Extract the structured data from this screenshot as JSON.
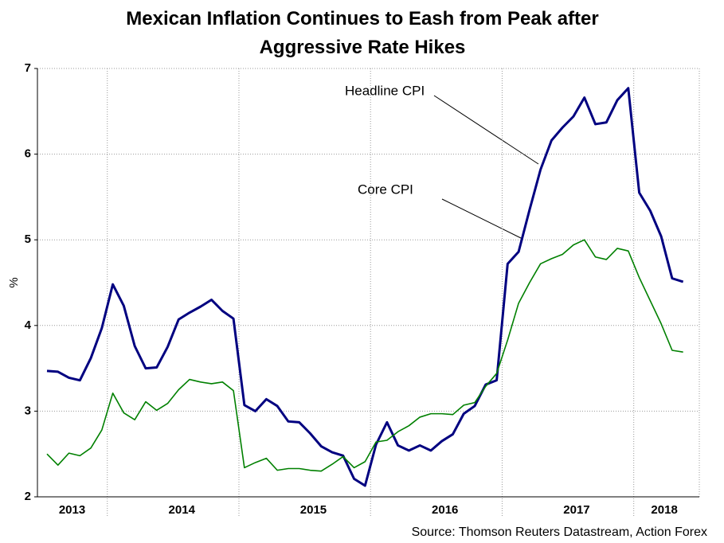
{
  "chart_data": {
    "type": "line",
    "title": "Mexican Inflation Continues to Eash from Peak after Aggressive Rate Hikes",
    "y_label": "%",
    "source": "Source: Thomson Reuters Datastream, Action Forex",
    "categories": [
      null,
      null,
      "2013",
      null,
      null,
      null,
      null,
      null,
      null,
      null,
      null,
      null,
      "2014",
      null,
      null,
      null,
      null,
      null,
      null,
      null,
      null,
      null,
      null,
      null,
      "2015",
      null,
      null,
      null,
      null,
      null,
      null,
      null,
      null,
      null,
      null,
      null,
      "2016",
      null,
      null,
      null,
      null,
      null,
      null,
      null,
      null,
      null,
      null,
      null,
      "2017",
      null,
      null,
      null,
      null,
      null,
      null,
      null,
      "2018",
      null,
      null
    ],
    "ylim": [
      2,
      7
    ],
    "yticks": [
      2,
      3,
      4,
      5,
      6,
      7
    ],
    "grid": true,
    "series": [
      {
        "name": "Headline CPI",
        "color": "#000080",
        "values": [
          3.47,
          3.46,
          3.39,
          3.36,
          3.62,
          3.97,
          4.48,
          4.23,
          3.76,
          3.5,
          3.51,
          3.75,
          4.07,
          4.15,
          4.22,
          4.3,
          4.17,
          4.08,
          3.07,
          3.0,
          3.14,
          3.06,
          2.88,
          2.87,
          2.74,
          2.59,
          2.52,
          2.48,
          2.21,
          2.13,
          2.61,
          2.87,
          2.6,
          2.54,
          2.6,
          2.54,
          2.65,
          2.73,
          2.97,
          3.06,
          3.31,
          3.36,
          4.72,
          4.86,
          5.35,
          5.82,
          6.16,
          6.31,
          6.44,
          6.66,
          6.35,
          6.37,
          6.63,
          6.77,
          5.55,
          5.34,
          5.04,
          4.55,
          4.51
        ]
      },
      {
        "name": "Core CPI",
        "color": "#008000",
        "values": [
          2.5,
          2.37,
          2.51,
          2.48,
          2.57,
          2.78,
          3.21,
          2.98,
          2.9,
          3.11,
          3.01,
          3.09,
          3.25,
          3.37,
          3.34,
          3.32,
          3.34,
          3.24,
          2.34,
          2.4,
          2.45,
          2.31,
          2.33,
          2.33,
          2.31,
          2.3,
          2.38,
          2.47,
          2.34,
          2.41,
          2.64,
          2.66,
          2.76,
          2.83,
          2.93,
          2.97,
          2.97,
          2.96,
          3.07,
          3.1,
          3.29,
          3.44,
          3.83,
          4.26,
          4.5,
          4.72,
          4.78,
          4.83,
          4.94,
          5.0,
          4.8,
          4.77,
          4.9,
          4.87,
          4.56,
          4.29,
          4.02,
          3.71,
          3.69
        ]
      }
    ]
  }
}
